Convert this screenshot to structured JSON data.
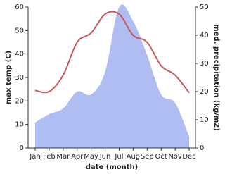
{
  "chart_data": {
    "type": "line-area",
    "xlabel": "date (month)",
    "ylabel": "max temp (C)",
    "y2label": "med. precipitation (kg/m2)",
    "categories": [
      "Jan",
      "Feb",
      "Mar",
      "Apr",
      "May",
      "Jun",
      "Jul",
      "Aug",
      "Sep",
      "Oct",
      "Nov",
      "Dec"
    ],
    "series": [
      {
        "name": "max temp",
        "color": "#c8575a",
        "axis": "y",
        "values": [
          24.5,
          24,
          31,
          45,
          49,
          57,
          57,
          48,
          45,
          35,
          31,
          23.5
        ]
      },
      {
        "name": "med. precipitation",
        "color": "#b0bdf2",
        "axis": "y2",
        "values": [
          9,
          12,
          14,
          20,
          19,
          27,
          50,
          45,
          33,
          19,
          16,
          4
        ]
      }
    ],
    "ylim": [
      0,
      60
    ],
    "yticks": [
      0,
      10,
      20,
      30,
      40,
      50,
      60
    ],
    "y2lim": [
      0,
      50
    ],
    "y2ticks": [
      0,
      10,
      20,
      30,
      40,
      50
    ]
  }
}
